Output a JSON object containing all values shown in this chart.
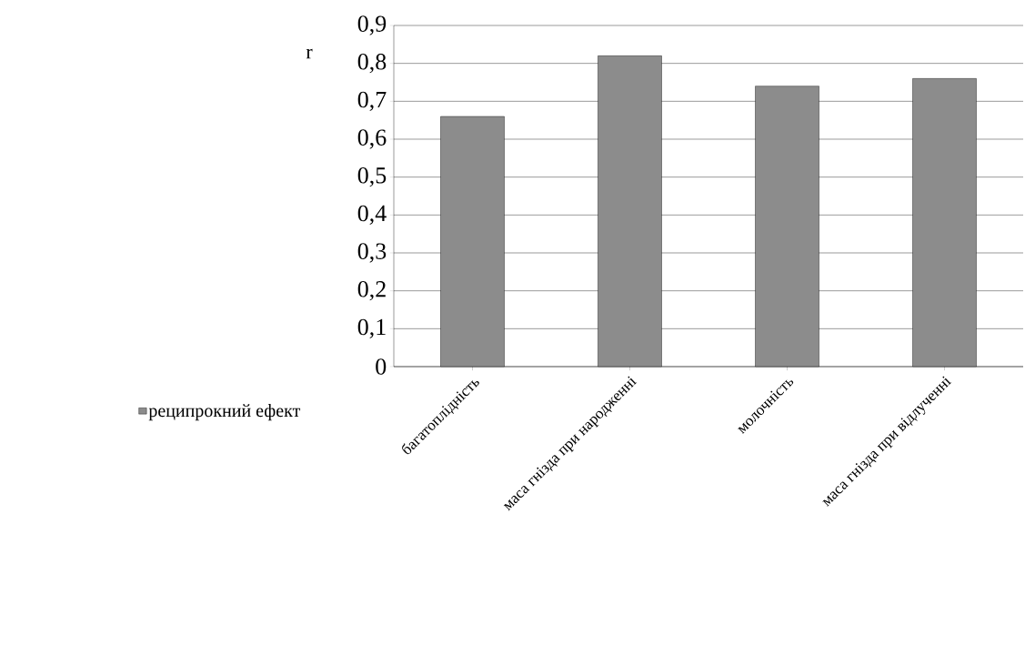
{
  "chart_data": {
    "type": "bar",
    "ylabel": "r",
    "categories": [
      "багатоплідність",
      "маса гнізда при народженні",
      "молочність",
      "маса гнізда при відлученні"
    ],
    "series": [
      {
        "name": "реципрокний ефект",
        "color": "#8c8c8c",
        "values": [
          0.66,
          0.82,
          0.74,
          0.76
        ]
      }
    ],
    "ylim": [
      0,
      0.9
    ],
    "yticks": [
      {
        "value": 0,
        "label": "0"
      },
      {
        "value": 0.1,
        "label": "0,1"
      },
      {
        "value": 0.2,
        "label": "0,2"
      },
      {
        "value": 0.3,
        "label": "0,3"
      },
      {
        "value": 0.4,
        "label": "0,4"
      },
      {
        "value": 0.5,
        "label": "0,5"
      },
      {
        "value": 0.6,
        "label": "0,6"
      },
      {
        "value": 0.7,
        "label": "0,7"
      },
      {
        "value": 0.8,
        "label": "0,8"
      },
      {
        "value": 0.9,
        "label": "0,9"
      }
    ],
    "grid": "y",
    "legend": "left"
  }
}
